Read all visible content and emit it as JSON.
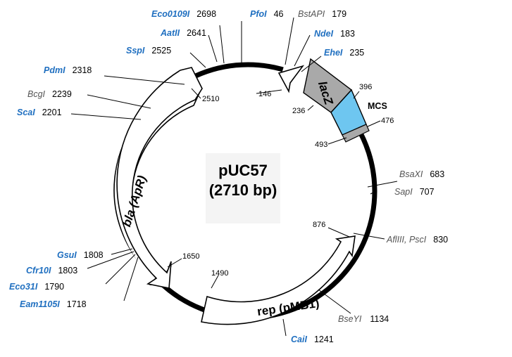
{
  "plasmid": {
    "name": "pUC57",
    "size_label": "(2710 bp)"
  },
  "features": {
    "bla": "bla (ApR)",
    "rep": "rep (pMB1)",
    "lacz": "lacZ",
    "mcs": "MCS"
  },
  "sites": {
    "eco0109i": {
      "name": "Eco0109I",
      "pos": "2698"
    },
    "pfoi": {
      "name": "PfoI",
      "pos": "46"
    },
    "bstapi": {
      "name": "BstAPI",
      "pos": "179"
    },
    "ndei": {
      "name": "NdeI",
      "pos": "183"
    },
    "ehei": {
      "name": "EheI",
      "pos": "235"
    },
    "aatii": {
      "name": "AatII",
      "pos": "2641"
    },
    "sspi": {
      "name": "SspI",
      "pos": "2525"
    },
    "pdmi": {
      "name": "PdmI",
      "pos": "2318"
    },
    "bcgi": {
      "name": "BcgI",
      "pos": "2239"
    },
    "scai": {
      "name": "ScaI",
      "pos": "2201"
    },
    "bsaxi": {
      "name": "BsaXI",
      "pos": "683"
    },
    "sapi": {
      "name": "SapI",
      "pos": "707"
    },
    "aflIII": {
      "name": "AflIII, PscI",
      "pos": "830"
    },
    "gsui": {
      "name": "GsuI",
      "pos": "1808"
    },
    "cfr10i": {
      "name": "Cfr10I",
      "pos": "1803"
    },
    "eco31i": {
      "name": "Eco31I",
      "pos": "1790"
    },
    "eam1105i": {
      "name": "Eam1105I",
      "pos": "1718"
    },
    "bseyi": {
      "name": "BseYI",
      "pos": "1134"
    },
    "caii": {
      "name": "CaiI",
      "pos": "1241"
    }
  },
  "boundaries": {
    "b146": "146",
    "b236": "236",
    "b396": "396",
    "b476": "476",
    "b493": "493",
    "b2510": "2510",
    "b876": "876",
    "b1650": "1650",
    "b1490": "1490"
  },
  "colors": {
    "backbone": "#000000",
    "lacz_fill": "#a9a9a9",
    "mcs_fill": "#6ec6f0",
    "site_blue": "#1f6fc0",
    "site_gray": "#555555"
  }
}
